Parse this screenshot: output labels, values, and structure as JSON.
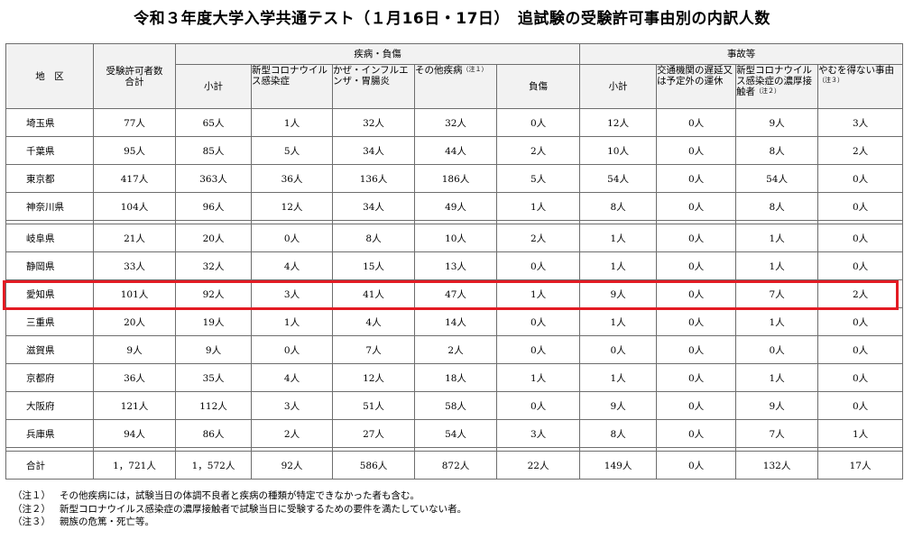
{
  "title": "令和３年度大学入学共通テスト（１月16日・17日）　追試験の受験許可事由別の内訳人数",
  "headers": {
    "region": "地　区",
    "total_permitted": "受験許可者数合計",
    "illness_group": "疾病・負傷",
    "accident_group": "事故等",
    "illness_subtotal": "小計",
    "covid": "新型コロナウイルス感染症",
    "flu": "かぜ・インフルエンザ・胃腸炎",
    "other_illness": "その他疾病",
    "other_illness_note": "（注１）",
    "injury": "負傷",
    "accident_subtotal": "小計",
    "transport": "交通機関の遅延又は予定外の運休",
    "close_contact": "新型コロナウイルス感染症の濃厚接触者",
    "close_contact_note": "（注２）",
    "unavoidable": "やむを得ない事由",
    "unavoidable_note": "（注３）"
  },
  "rows": [
    {
      "region": "埼玉県",
      "total": "77人",
      "ill_sub": "65人",
      "covid": "1人",
      "flu": "32人",
      "other": "32人",
      "injury": "0人",
      "acc_sub": "12人",
      "transport": "0人",
      "contact": "9人",
      "unavoidable": "3人"
    },
    {
      "region": "千葉県",
      "total": "95人",
      "ill_sub": "85人",
      "covid": "5人",
      "flu": "34人",
      "other": "44人",
      "injury": "2人",
      "acc_sub": "10人",
      "transport": "0人",
      "contact": "8人",
      "unavoidable": "2人"
    },
    {
      "region": "東京都",
      "total": "417人",
      "ill_sub": "363人",
      "covid": "36人",
      "flu": "136人",
      "other": "186人",
      "injury": "5人",
      "acc_sub": "54人",
      "transport": "0人",
      "contact": "54人",
      "unavoidable": "0人"
    },
    {
      "region": "神奈川県",
      "total": "104人",
      "ill_sub": "96人",
      "covid": "12人",
      "flu": "34人",
      "other": "49人",
      "injury": "1人",
      "acc_sub": "8人",
      "transport": "0人",
      "contact": "8人",
      "unavoidable": "0人"
    },
    {
      "region": "岐阜県",
      "total": "21人",
      "ill_sub": "20人",
      "covid": "0人",
      "flu": "8人",
      "other": "10人",
      "injury": "2人",
      "acc_sub": "1人",
      "transport": "0人",
      "contact": "1人",
      "unavoidable": "0人"
    },
    {
      "region": "静岡県",
      "total": "33人",
      "ill_sub": "32人",
      "covid": "4人",
      "flu": "15人",
      "other": "13人",
      "injury": "0人",
      "acc_sub": "1人",
      "transport": "0人",
      "contact": "1人",
      "unavoidable": "0人"
    },
    {
      "region": "愛知県",
      "total": "101人",
      "ill_sub": "92人",
      "covid": "3人",
      "flu": "41人",
      "other": "47人",
      "injury": "1人",
      "acc_sub": "9人",
      "transport": "0人",
      "contact": "7人",
      "unavoidable": "2人"
    },
    {
      "region": "三重県",
      "total": "20人",
      "ill_sub": "19人",
      "covid": "1人",
      "flu": "4人",
      "other": "14人",
      "injury": "0人",
      "acc_sub": "1人",
      "transport": "0人",
      "contact": "1人",
      "unavoidable": "0人"
    },
    {
      "region": "滋賀県",
      "total": "9人",
      "ill_sub": "9人",
      "covid": "0人",
      "flu": "7人",
      "other": "2人",
      "injury": "0人",
      "acc_sub": "0人",
      "transport": "0人",
      "contact": "0人",
      "unavoidable": "0人"
    },
    {
      "region": "京都府",
      "total": "36人",
      "ill_sub": "35人",
      "covid": "4人",
      "flu": "12人",
      "other": "18人",
      "injury": "1人",
      "acc_sub": "1人",
      "transport": "0人",
      "contact": "1人",
      "unavoidable": "0人"
    },
    {
      "region": "大阪府",
      "total": "121人",
      "ill_sub": "112人",
      "covid": "3人",
      "flu": "51人",
      "other": "58人",
      "injury": "0人",
      "acc_sub": "9人",
      "transport": "0人",
      "contact": "9人",
      "unavoidable": "0人"
    },
    {
      "region": "兵庫県",
      "total": "94人",
      "ill_sub": "86人",
      "covid": "2人",
      "flu": "27人",
      "other": "54人",
      "injury": "3人",
      "acc_sub": "8人",
      "transport": "0人",
      "contact": "7人",
      "unavoidable": "1人"
    }
  ],
  "total_row": {
    "region": "合計",
    "total": "1，721人",
    "ill_sub": "1，572人",
    "covid": "92人",
    "flu": "586人",
    "other": "872人",
    "injury": "22人",
    "acc_sub": "149人",
    "transport": "0人",
    "contact": "132人",
    "unavoidable": "17人"
  },
  "notes": [
    {
      "label": "（注１）",
      "text": "その他疾病には，試験当日の体調不良者と疾病の種類が特定できなかった者も含む。"
    },
    {
      "label": "（注２）",
      "text": "新型コロナウイルス感染症の濃厚接触者で試験当日に受験するための要件を満たしていない者。"
    },
    {
      "label": "（注３）",
      "text": "親族の危篤・死亡等。"
    }
  ],
  "highlight_color": "#e31b23"
}
